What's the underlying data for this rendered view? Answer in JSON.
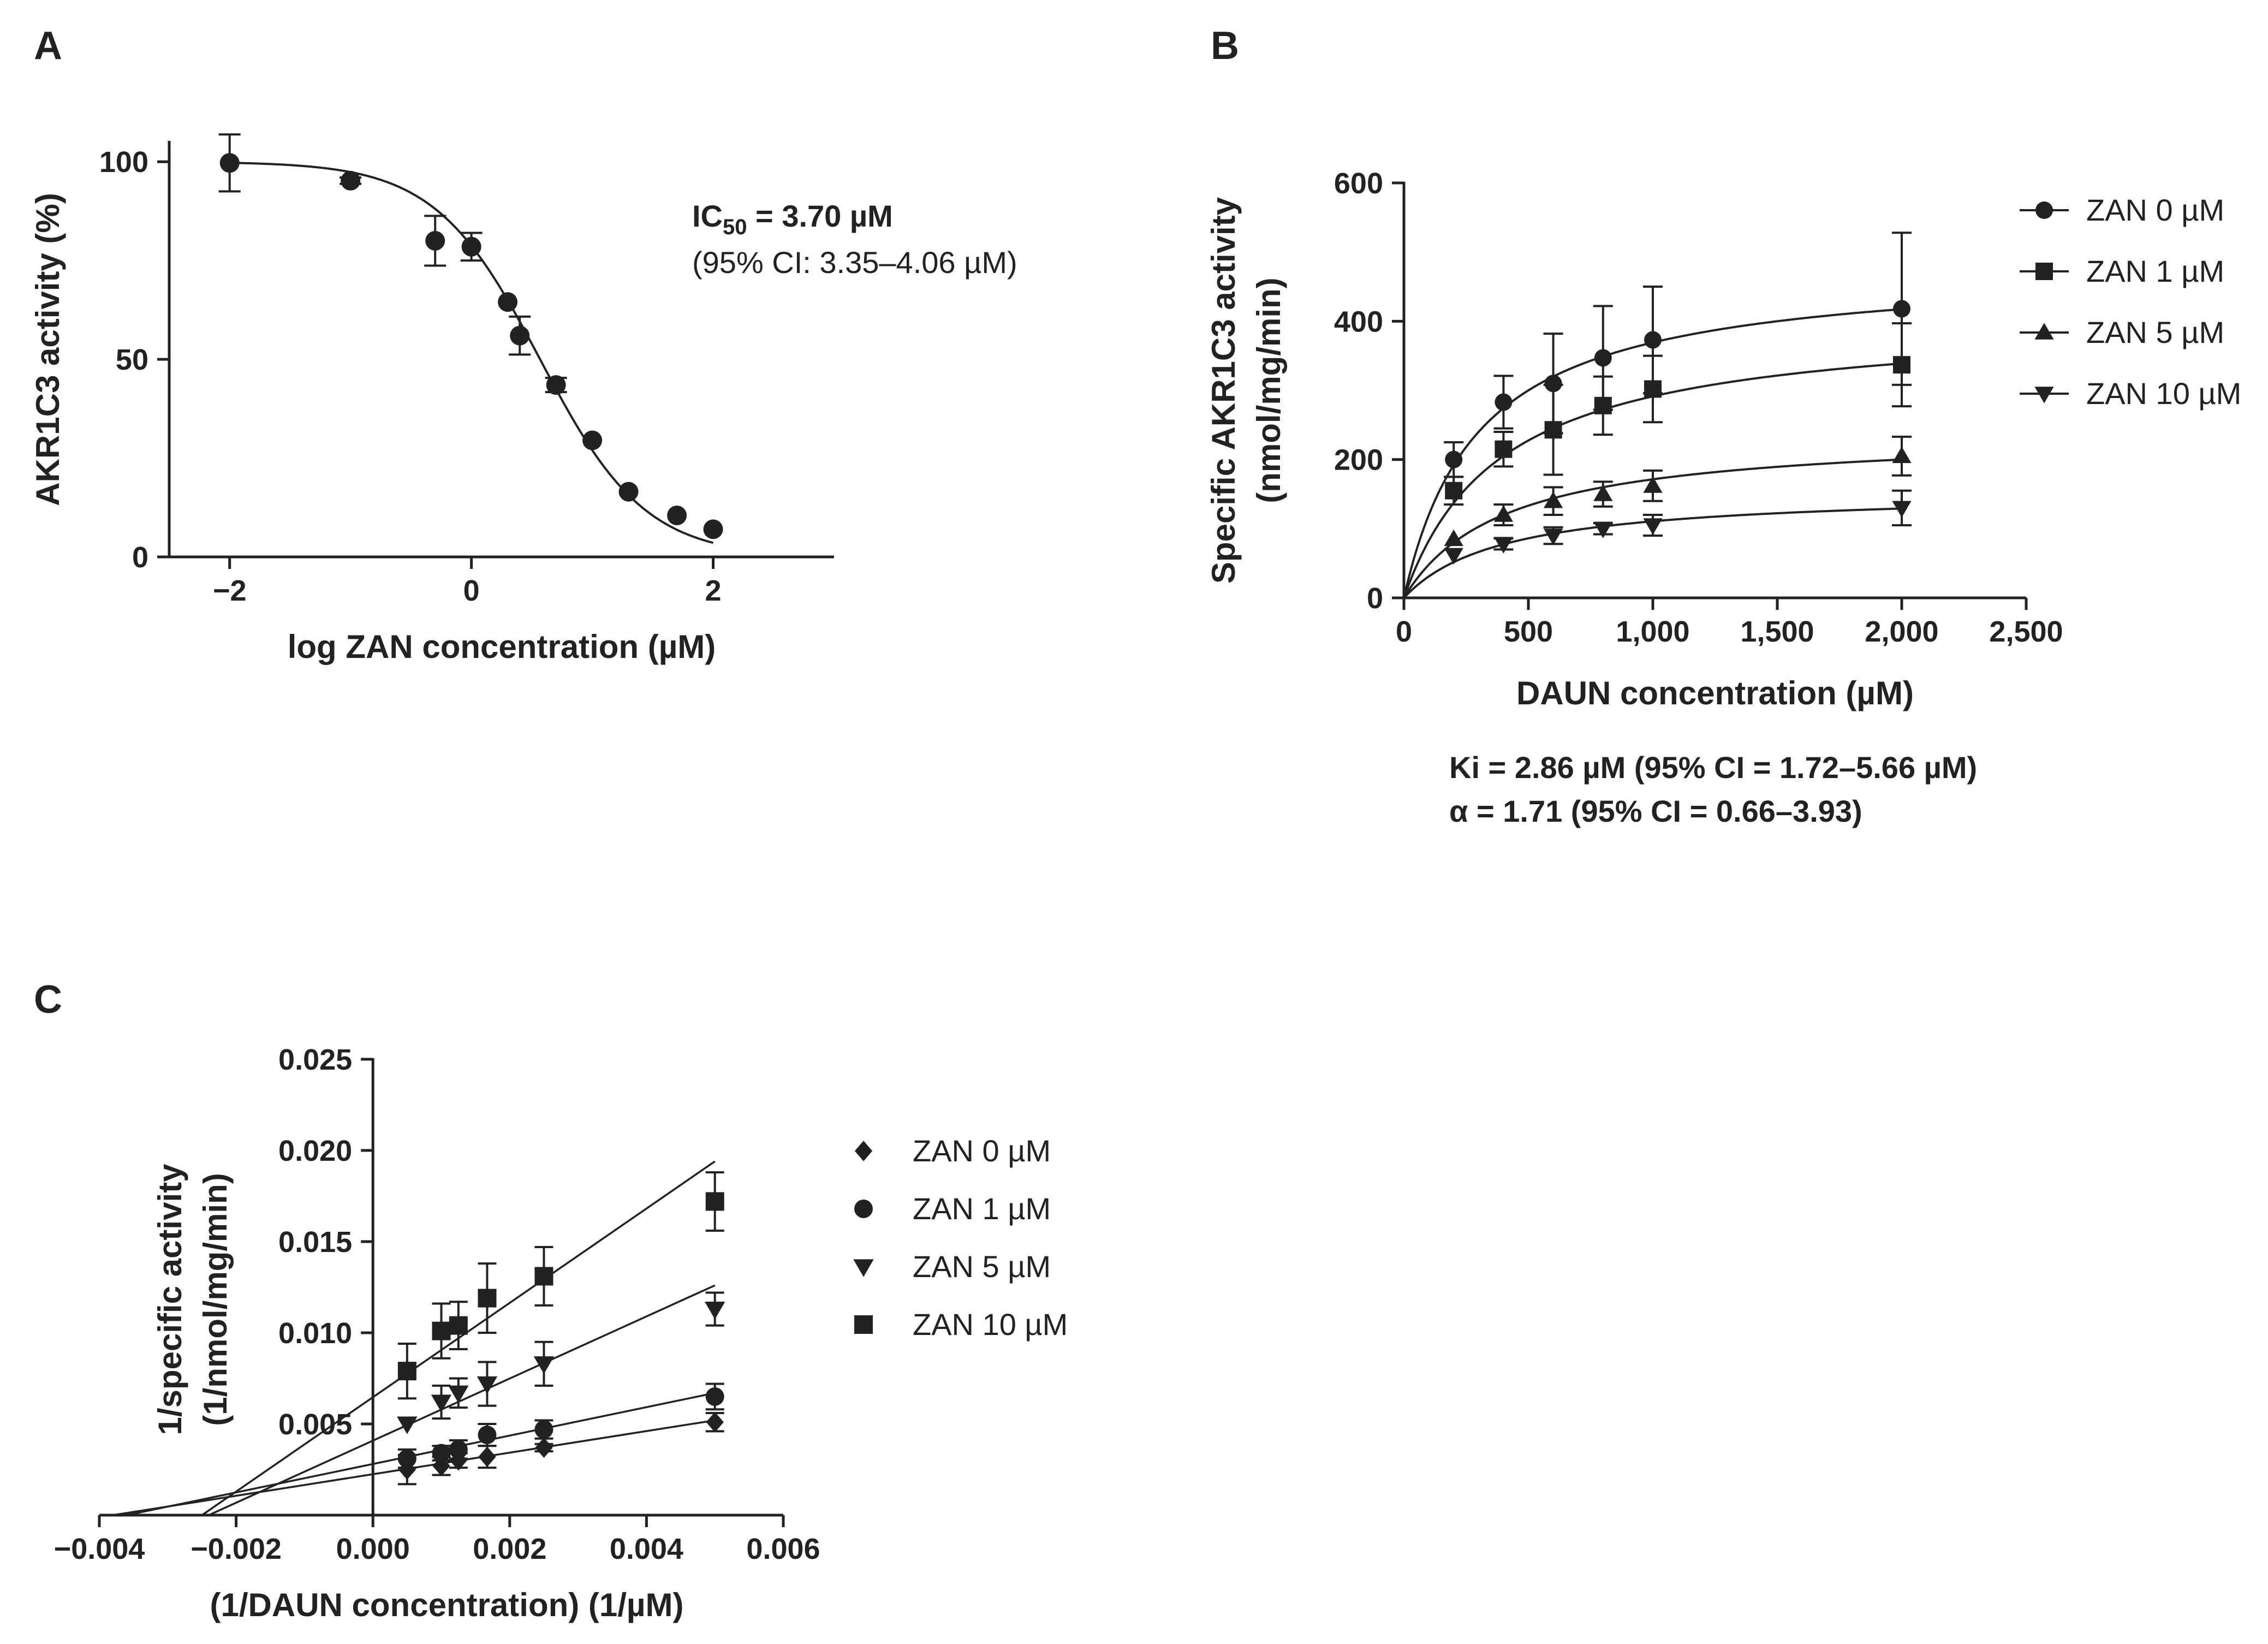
{
  "chart_data": [
    {
      "panel": "A",
      "type": "scatter",
      "title": "",
      "xlabel": "log ZAN concentration (µM)",
      "ylabel": "AKR1C3 activity (%)",
      "xlim": [
        -2.5,
        3
      ],
      "ylim": [
        0,
        105
      ],
      "xticks": [
        -2,
        0,
        2
      ],
      "xtick_labels": [
        "−2",
        "0",
        "2"
      ],
      "yticks": [
        0,
        50,
        100
      ],
      "ytick_labels": [
        "0",
        "50",
        "100"
      ],
      "annotation": {
        "ic50_prefix": "IC",
        "ic50_sub": "50",
        "ic50_value": " = 3.70 µM",
        "ci": "(95% CI: 3.35–4.06 µM)"
      },
      "curve": {
        "kind": "sigmoid",
        "top": 100,
        "bottom": 0,
        "log_ic50": 0.568,
        "hill": -1
      },
      "series": [
        {
          "name": "AKR1C3 activity",
          "marker": "circle",
          "points": [
            {
              "x": -2,
              "y": 99.7,
              "err": 7.2
            },
            {
              "x": -1,
              "y": 95.2,
              "err": 0.8
            },
            {
              "x": -0.3,
              "y": 80.0,
              "err": 6.3
            },
            {
              "x": 0,
              "y": 78.5,
              "err": 3.5
            },
            {
              "x": 0.3,
              "y": 64.5,
              "err": 0
            },
            {
              "x": 0.4,
              "y": 56.0,
              "err": 4.8
            },
            {
              "x": 0.7,
              "y": 43.5,
              "err": 1.8
            },
            {
              "x": 1,
              "y": 29.5,
              "err": 0
            },
            {
              "x": 1.3,
              "y": 16.5,
              "err": 0
            },
            {
              "x": 1.7,
              "y": 10.5,
              "err": 0
            },
            {
              "x": 2,
              "y": 7.0,
              "err": 0
            }
          ]
        }
      ]
    },
    {
      "panel": "B",
      "type": "scatter",
      "title": "",
      "xlabel": "DAUN concentration (µM)",
      "ylabel": "Specific AKR1C3 activity",
      "ylabel_line2": "(nmol/mg/min)",
      "xlim": [
        0,
        2500
      ],
      "ylim": [
        0,
        600
      ],
      "xticks": [
        0,
        500,
        1000,
        1500,
        2000,
        2500
      ],
      "xtick_labels": [
        "0",
        "500",
        "1,000",
        "1,500",
        "2,000",
        "2,500"
      ],
      "yticks": [
        0,
        200,
        400,
        600
      ],
      "ytick_labels": [
        "0",
        "200",
        "400",
        "600"
      ],
      "annotation": {
        "ki": "Ki = 2.86 µM (95% CI = 1.72–5.66 µM)",
        "alpha": "α = 1.71 (95% CI = 0.66–3.93)"
      },
      "legend_position": "right",
      "series": [
        {
          "name": "ZAN 0 µM",
          "marker": "circle",
          "curve": {
            "vmax": 480,
            "km": 300
          },
          "points": [
            {
              "x": 200,
              "y": 200,
              "err": 25
            },
            {
              "x": 400,
              "y": 283,
              "err": 38
            },
            {
              "x": 600,
              "y": 310,
              "err": 72
            },
            {
              "x": 800,
              "y": 347,
              "err": 75
            },
            {
              "x": 1000,
              "y": 373,
              "err": 77
            },
            {
              "x": 2000,
              "y": 418,
              "err": 110
            }
          ]
        },
        {
          "name": "ZAN 1 µM",
          "marker": "square",
          "curve": {
            "vmax": 405,
            "km": 390
          },
          "points": [
            {
              "x": 200,
              "y": 155,
              "err": 20
            },
            {
              "x": 400,
              "y": 215,
              "err": 25
            },
            {
              "x": 600,
              "y": 243,
              "err": 65
            },
            {
              "x": 800,
              "y": 278,
              "err": 42
            },
            {
              "x": 1000,
              "y": 302,
              "err": 48
            },
            {
              "x": 2000,
              "y": 337,
              "err": 60
            }
          ]
        },
        {
          "name": "ZAN 5 µM",
          "marker": "triangle-up",
          "curve": {
            "vmax": 240,
            "km": 400
          },
          "points": [
            {
              "x": 200,
              "y": 85,
              "err": 0
            },
            {
              "x": 400,
              "y": 120,
              "err": 15
            },
            {
              "x": 600,
              "y": 140,
              "err": 20
            },
            {
              "x": 800,
              "y": 150,
              "err": 18
            },
            {
              "x": 1000,
              "y": 162,
              "err": 22
            },
            {
              "x": 2000,
              "y": 205,
              "err": 28
            }
          ]
        },
        {
          "name": "ZAN 10 µM",
          "marker": "triangle-down",
          "curve": {
            "vmax": 155,
            "km": 400
          },
          "points": [
            {
              "x": 200,
              "y": 62,
              "err": 0
            },
            {
              "x": 400,
              "y": 78,
              "err": 8
            },
            {
              "x": 600,
              "y": 90,
              "err": 12
            },
            {
              "x": 800,
              "y": 100,
              "err": 8
            },
            {
              "x": 1000,
              "y": 105,
              "err": 15
            },
            {
              "x": 2000,
              "y": 130,
              "err": 25
            }
          ]
        }
      ]
    },
    {
      "panel": "C",
      "type": "scatter",
      "title": "",
      "xlabel": "(1/DAUN concentration) (1/µM)",
      "ylabel": "1/specific activity",
      "ylabel_line2": "(1/nmol/mg/min)",
      "xlim": [
        -0.004,
        0.006
      ],
      "ylim": [
        0,
        0.025
      ],
      "xticks": [
        -0.004,
        -0.002,
        0,
        0.002,
        0.004,
        0.006
      ],
      "xtick_labels": [
        "−0.004",
        "−0.002",
        "0.000",
        "0.002",
        "0.004",
        "0.006"
      ],
      "yticks": [
        0.005,
        0.01,
        0.015,
        0.02,
        0.025
      ],
      "ytick_labels": [
        "0.005",
        "0.010",
        "0.015",
        "0.020",
        "0.025"
      ],
      "legend_position": "right",
      "series": [
        {
          "name": "ZAN 0 µM",
          "marker": "diamond",
          "line": {
            "x0": -0.0038,
            "y0": 0,
            "x1": 0.005,
            "y1": 0.0052
          },
          "points": [
            {
              "x": 0.0005,
              "y": 0.0025,
              "err": 0.0008
            },
            {
              "x": 0.001,
              "y": 0.0027,
              "err": 0.0005
            },
            {
              "x": 0.00125,
              "y": 0.003,
              "err": 0.0004
            },
            {
              "x": 0.00167,
              "y": 0.0032,
              "err": 0.0006
            },
            {
              "x": 0.0025,
              "y": 0.0037,
              "err": 0.0002
            },
            {
              "x": 0.005,
              "y": 0.0051,
              "err": 0.0005
            }
          ]
        },
        {
          "name": "ZAN 1 µM",
          "marker": "circle",
          "line": {
            "x0": -0.0036,
            "y0": 0,
            "x1": 0.005,
            "y1": 0.0067
          },
          "points": [
            {
              "x": 0.0005,
              "y": 0.0031,
              "err": 0.0005
            },
            {
              "x": 0.001,
              "y": 0.0034,
              "err": 0.0004
            },
            {
              "x": 0.00125,
              "y": 0.0036,
              "err": 0.0005
            },
            {
              "x": 0.00167,
              "y": 0.0044,
              "err": 0.0006
            },
            {
              "x": 0.0025,
              "y": 0.0047,
              "err": 0.0005
            },
            {
              "x": 0.005,
              "y": 0.0065,
              "err": 0.0007
            }
          ]
        },
        {
          "name": "ZAN 5 µM",
          "marker": "triangle-down",
          "line": {
            "x0": -0.0024,
            "y0": 0,
            "x1": 0.005,
            "y1": 0.0126
          },
          "points": [
            {
              "x": 0.0005,
              "y": 0.005,
              "err": 0
            },
            {
              "x": 0.001,
              "y": 0.0062,
              "err": 0.0009
            },
            {
              "x": 0.00125,
              "y": 0.0067,
              "err": 0.0008
            },
            {
              "x": 0.00167,
              "y": 0.0072,
              "err": 0.0012
            },
            {
              "x": 0.0025,
              "y": 0.0083,
              "err": 0.0012
            },
            {
              "x": 0.005,
              "y": 0.0113,
              "err": 0.0009
            }
          ]
        },
        {
          "name": "ZAN 10 µM",
          "marker": "square",
          "line": {
            "x0": -0.0025,
            "y0": 0,
            "x1": 0.005,
            "y1": 0.0194
          },
          "points": [
            {
              "x": 0.0005,
              "y": 0.0079,
              "err": 0.0015
            },
            {
              "x": 0.001,
              "y": 0.0101,
              "err": 0.0015
            },
            {
              "x": 0.00125,
              "y": 0.0104,
              "err": 0.0013
            },
            {
              "x": 0.00167,
              "y": 0.0119,
              "err": 0.0019
            },
            {
              "x": 0.0025,
              "y": 0.0131,
              "err": 0.0016
            },
            {
              "x": 0.005,
              "y": 0.0172,
              "err": 0.0016
            }
          ]
        }
      ]
    }
  ]
}
